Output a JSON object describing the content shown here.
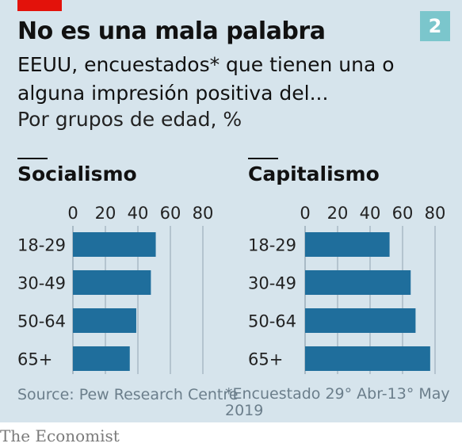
{
  "header": {
    "title": "No es una mala palabra",
    "subtitle": "EEUU, encuestados* que tienen una o alguna impresión positiva del...",
    "unit_line": "Por grupos de edad, %",
    "badge": "2"
  },
  "chart_data": [
    {
      "type": "bar",
      "title": "Socialismo",
      "categories": [
        "18-29",
        "30-49",
        "50-64",
        "65+"
      ],
      "values": [
        51,
        48,
        39,
        35
      ],
      "xlim": [
        0,
        80
      ],
      "xticks": [
        "0",
        "20",
        "40",
        "60",
        "80"
      ]
    },
    {
      "type": "bar",
      "title": "Capitalismo",
      "categories": [
        "18-29",
        "30-49",
        "50-64",
        "65+"
      ],
      "values": [
        52,
        65,
        68,
        77
      ],
      "xlim": [
        0,
        80
      ],
      "xticks": [
        "0",
        "20",
        "40",
        "60",
        "80"
      ]
    }
  ],
  "footer": {
    "source": "Source: Pew Research Centre",
    "footnote": "*Encuestado 29° Abr-13° May 2019",
    "brand": "The Economist"
  },
  "colors": {
    "bar": "#1f6e9c",
    "background": "#d6e4ec",
    "gridline": "#a9bac5",
    "accent": "#e3120b"
  }
}
